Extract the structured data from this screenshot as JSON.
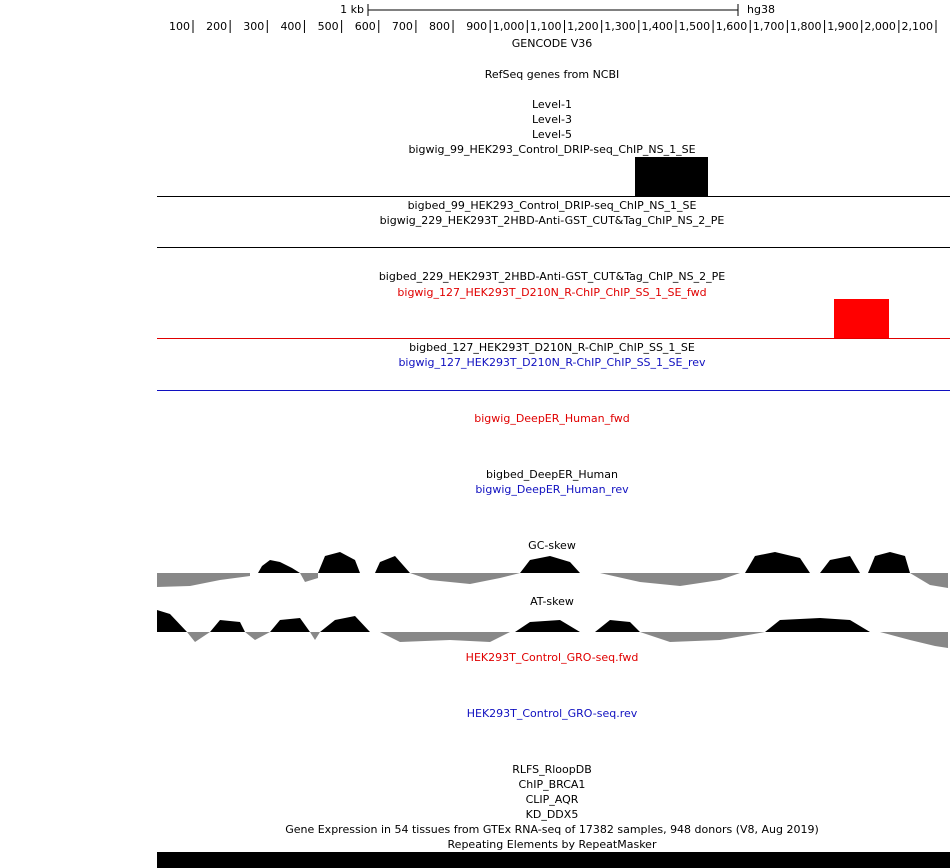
{
  "ruler": {
    "scale": "1 kb",
    "assembly": "hg38",
    "ticks": [
      "100",
      "200",
      "300",
      "400",
      "500",
      "600",
      "700",
      "800",
      "900",
      "1,000",
      "1,100",
      "1,200",
      "1,300",
      "1,400",
      "1,500",
      "1,600",
      "1,700",
      "1,800",
      "1,900",
      "2,000",
      "2,100"
    ]
  },
  "tracks": [
    "GENCODE V36",
    "RefSeq genes from NCBI",
    "Level-1",
    "Level-3",
    "Level-5",
    "bigwig_99_HEK293_Control_DRIP-seq_ChIP_NS_1_SE",
    "bigbed_99_HEK293_Control_DRIP-seq_ChIP_NS_1_SE",
    "bigwig_229_HEK293T_2HBD-Anti-GST_CUT&Tag_ChIP_NS_2_PE",
    "bigbed_229_HEK293T_2HBD-Anti-GST_CUT&Tag_ChIP_NS_2_PE",
    "bigwig_127_HEK293T_D210N_R-ChIP_ChIP_SS_1_SE_fwd",
    "bigbed_127_HEK293T_D210N_R-ChIP_ChIP_SS_1_SE",
    "bigwig_127_HEK293T_D210N_R-ChIP_ChIP_SS_1_SE_rev",
    "bigwig_DeepER_Human_fwd",
    "bigbed_DeepER_Human",
    "bigwig_DeepER_Human_rev",
    "GC-skew",
    "AT-skew",
    "HEK293T_Control_GRO-seq.fwd",
    "HEK293T_Control_GRO-seq.rev",
    "RLFS_RloopDB",
    "ChIP_BRCA1",
    "CLIP_AQR",
    "KD_DDX5",
    "Gene Expression in 54 tissues from GTEx RNA-seq of 17382 samples, 948 donors (V8, Aug 2019)",
    "Repeating Elements by RepeatMasker"
  ]
}
